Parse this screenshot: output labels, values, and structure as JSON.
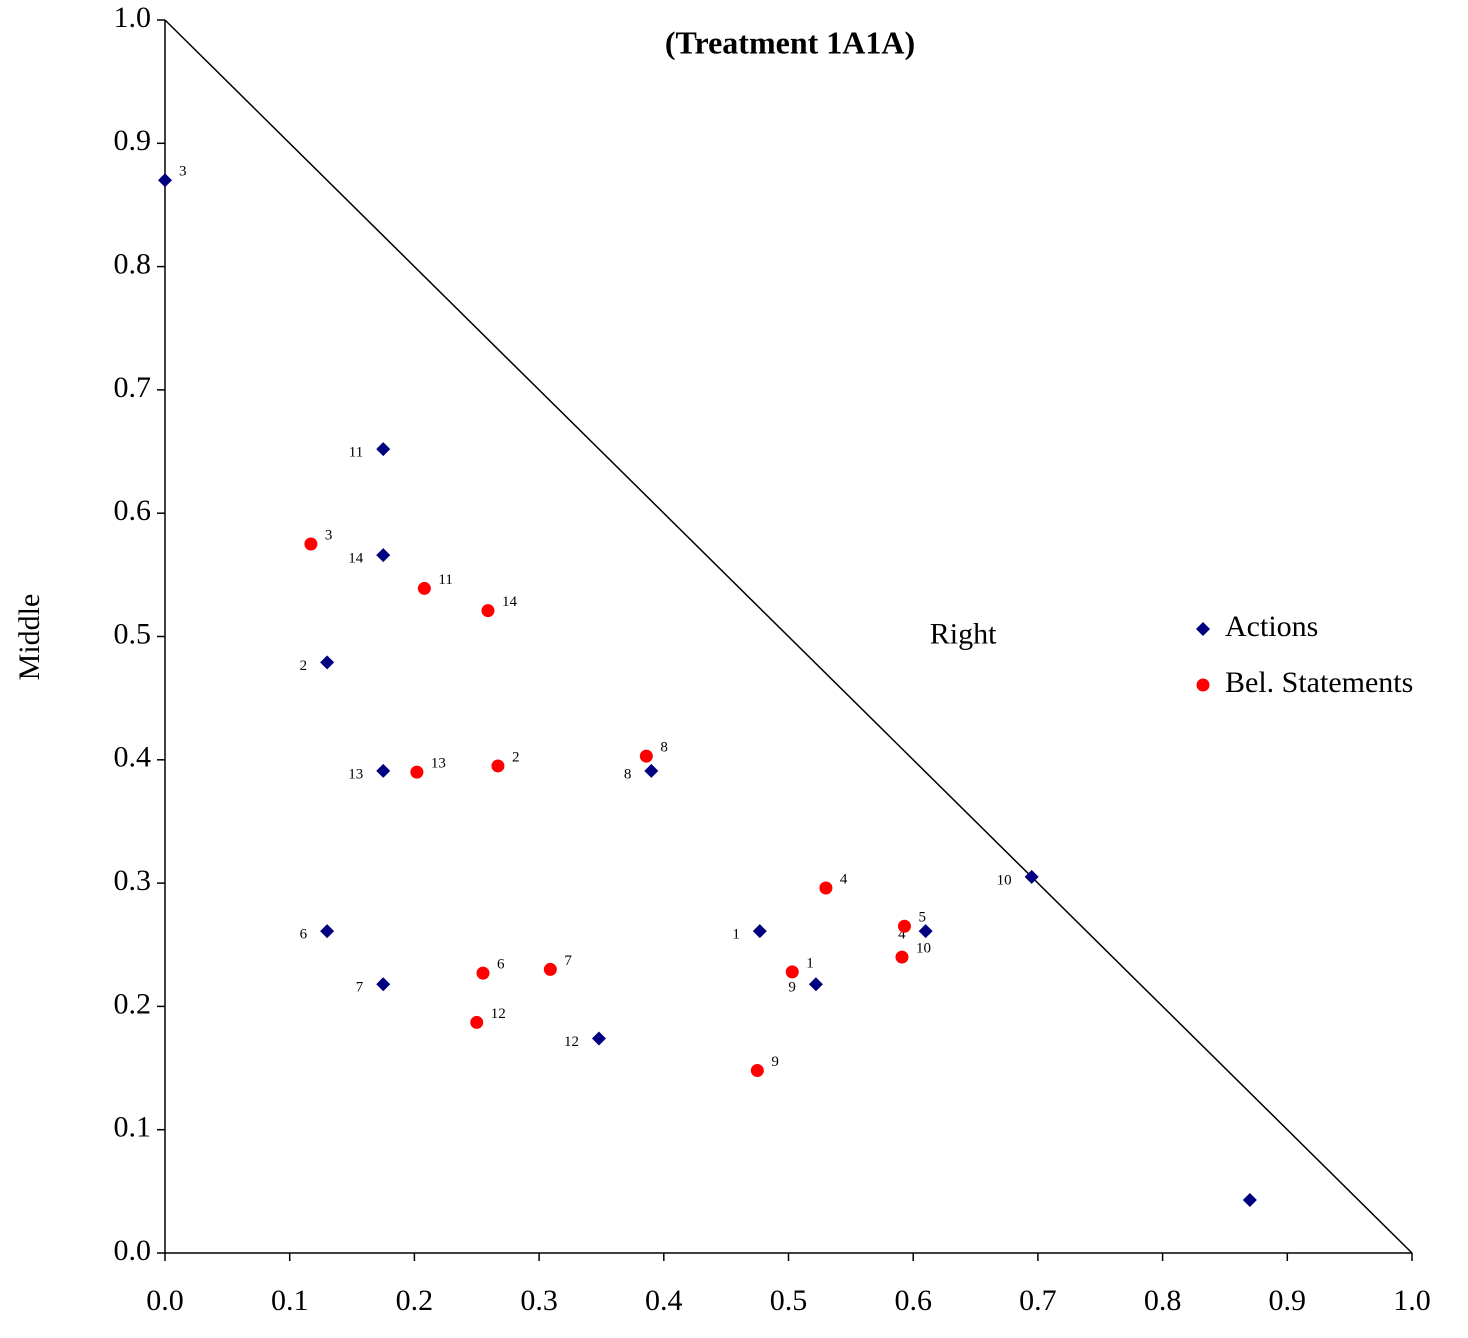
{
  "chart_data": {
    "type": "scatter",
    "title": "(Treatment 1A1A)",
    "y_label": "Middle",
    "annotations": [
      {
        "text": "Right",
        "x": 0.64,
        "y": 0.5
      }
    ],
    "xlim": [
      0,
      1
    ],
    "ylim": [
      0,
      1
    ],
    "xticks": [
      {
        "value": 0,
        "label": "0.0"
      },
      0.1,
      0.2,
      0.3,
      0.4,
      0.5,
      0.6,
      0.7,
      0.8,
      0.9,
      {
        "value": 1,
        "label": "1.0"
      }
    ],
    "yticks": [
      {
        "value": 0,
        "label": "0.0"
      },
      0.1,
      0.2,
      0.3,
      0.4,
      0.5,
      0.6,
      0.7,
      0.8,
      0.9,
      {
        "value": 1,
        "label": "1.0"
      }
    ],
    "legend": "right",
    "series": [
      {
        "name": "Actions",
        "color": "#000080",
        "marker": "diamond",
        "x": [
          0,
          0.175,
          0.175,
          0.13,
          0.175,
          0.39,
          0.695,
          0.13,
          0.175,
          0.477,
          0.61,
          0.522,
          0.348,
          0.87
        ],
        "values": [
          0.87,
          0.652,
          0.566,
          0.479,
          0.391,
          0.391,
          0.305,
          0.261,
          0.218,
          0.261,
          0.261,
          0.218,
          0.174,
          0.043
        ],
        "point_labels": [
          "3",
          "11",
          "14",
          "2",
          "13",
          "8",
          "10",
          "6",
          "7",
          "1",
          "4",
          "9",
          "12",
          null
        ]
      },
      {
        "name": "Bel. Statements",
        "color": "#ff0000",
        "marker": "circle",
        "x": [
          0.117,
          0.208,
          0.259,
          0.386,
          0.202,
          0.267,
          0.53,
          0.593,
          0.591,
          0.503,
          0.255,
          0.309,
          0.25,
          0.475
        ],
        "values": [
          0.575,
          0.539,
          0.521,
          0.403,
          0.39,
          0.395,
          0.296,
          0.265,
          0.24,
          0.228,
          0.227,
          0.23,
          0.187,
          0.148
        ],
        "point_labels": [
          "3",
          "11",
          "14",
          "8",
          "13",
          "2",
          "4",
          "5",
          "10",
          "1",
          "6",
          "7",
          "12",
          "9"
        ]
      }
    ]
  }
}
